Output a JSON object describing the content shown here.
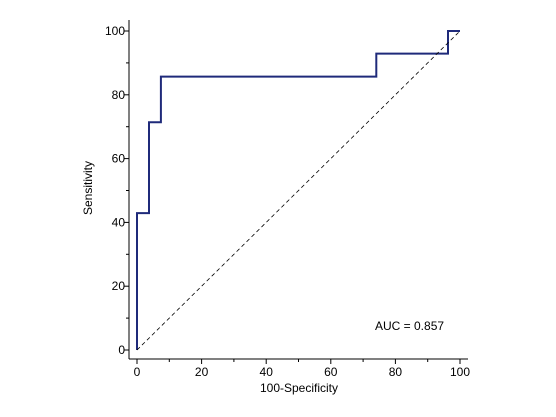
{
  "chart_data": {
    "type": "line",
    "title": "",
    "xlabel": "100-Specificity",
    "ylabel": "Sensitivity",
    "xlim": [
      0,
      100
    ],
    "ylim": [
      0,
      100
    ],
    "x_ticks": [
      0,
      20,
      40,
      60,
      80,
      100
    ],
    "y_ticks": [
      0,
      20,
      40,
      60,
      80,
      100
    ],
    "grid": false,
    "legend": "none",
    "annotation": "AUC = 0.857",
    "series": [
      {
        "kind": "roc-step",
        "color": "#1f2a7a",
        "points": [
          {
            "x": 0,
            "y": 0
          },
          {
            "x": 0,
            "y": 42.9
          },
          {
            "x": 3.7,
            "y": 42.9
          },
          {
            "x": 3.7,
            "y": 71.4
          },
          {
            "x": 7.4,
            "y": 71.4
          },
          {
            "x": 7.4,
            "y": 85.7
          },
          {
            "x": 74.1,
            "y": 85.7
          },
          {
            "x": 74.1,
            "y": 92.9
          },
          {
            "x": 96.3,
            "y": 92.9
          },
          {
            "x": 96.3,
            "y": 100
          },
          {
            "x": 100,
            "y": 100
          }
        ]
      },
      {
        "kind": "reference-diagonal",
        "color": "#000000",
        "dashed": true,
        "points": [
          {
            "x": 0,
            "y": 0
          },
          {
            "x": 100,
            "y": 100
          }
        ]
      }
    ]
  }
}
